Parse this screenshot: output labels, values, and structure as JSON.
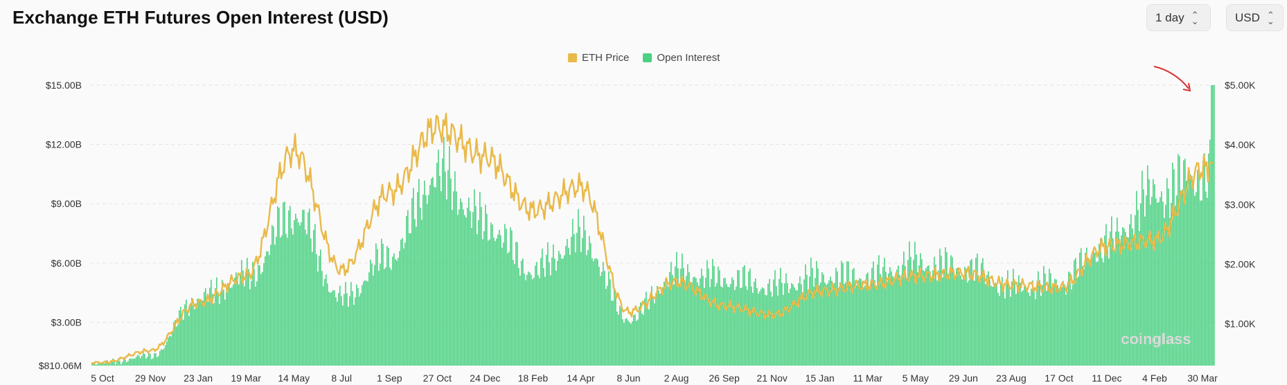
{
  "header": {
    "title": "Exchange ETH Futures Open Interest (USD)",
    "interval": "1 day",
    "currency": "USD"
  },
  "watermark": "coinglass",
  "colors": {
    "price": "#e9b949",
    "open_interest": "#4cd183",
    "arrow": "#d93030",
    "grid": "#e3e3e3"
  },
  "chart_data": {
    "type": "bar",
    "title": "Exchange ETH Futures Open Interest (USD)",
    "legend": [
      "ETH Price",
      "Open Interest"
    ],
    "legend_position": "top-center",
    "grid": true,
    "x_ticks": [
      "5 Oct",
      "29 Nov",
      "23 Jan",
      "19 Mar",
      "14 May",
      "8 Jul",
      "1 Sep",
      "27 Oct",
      "24 Dec",
      "18 Feb",
      "14 Apr",
      "8 Jun",
      "2 Aug",
      "26 Sep",
      "21 Nov",
      "15 Jan",
      "11 Mar",
      "5 May",
      "29 Jun",
      "23 Aug",
      "17 Oct",
      "11 Dec",
      "4 Feb",
      "30 Mar"
    ],
    "y_left": {
      "ticks": [
        "$810.06M",
        "$3.00B",
        "$6.00B",
        "$9.00B",
        "$12.00B",
        "$15.00B"
      ],
      "tick_values": [
        0.81,
        3,
        6,
        9,
        12,
        15
      ],
      "ylim": [
        0.81,
        15
      ],
      "unit": "USD billions"
    },
    "y_right": {
      "ticks": [
        "$1.00K",
        "$2.00K",
        "$3.00K",
        "$4.00K",
        "$5.00K"
      ],
      "tick_values": [
        1000,
        2000,
        3000,
        4000,
        5000
      ],
      "ylim": [
        300,
        5000
      ],
      "unit": "USD"
    },
    "series": [
      {
        "name": "Open Interest",
        "type": "bar",
        "axis": "left",
        "x": [
          "5 Oct",
          "29 Nov",
          "23 Jan",
          "19 Mar",
          "14 May",
          "8 Jul",
          "1 Sep",
          "27 Oct",
          "24 Dec",
          "18 Feb",
          "14 Apr",
          "8 Jun",
          "2 Aug",
          "26 Sep",
          "21 Nov",
          "15 Jan",
          "11 Mar",
          "5 May",
          "29 Jun",
          "23 Aug",
          "17 Oct",
          "11 Dec",
          "4 Feb",
          "30 Mar"
        ],
        "values": [
          0.95,
          1.3,
          4.2,
          5.3,
          8.5,
          4.2,
          6.4,
          10.5,
          8.0,
          5.6,
          7.3,
          3.2,
          5.5,
          5.2,
          4.8,
          5.3,
          5.3,
          6.0,
          5.7,
          4.8,
          5.0,
          7.0,
          9.5,
          10.5
        ],
        "last_value": 15.0
      },
      {
        "name": "ETH Price",
        "type": "line",
        "axis": "right",
        "x": [
          "5 Oct",
          "29 Nov",
          "23 Jan",
          "19 Mar",
          "14 May",
          "8 Jul",
          "1 Sep",
          "27 Oct",
          "24 Dec",
          "18 Feb",
          "14 Apr",
          "8 Jun",
          "2 Aug",
          "26 Sep",
          "21 Nov",
          "15 Jan",
          "11 Mar",
          "5 May",
          "29 Jun",
          "23 Aug",
          "17 Oct",
          "11 Dec",
          "4 Feb",
          "30 Mar"
        ],
        "values": [
          350,
          550,
          1350,
          1800,
          3900,
          1900,
          3200,
          4300,
          3800,
          2900,
          3300,
          1200,
          1700,
          1300,
          1150,
          1550,
          1650,
          1800,
          1850,
          1650,
          1600,
          2300,
          2400,
          3600
        ],
        "last_value": 3700
      }
    ]
  }
}
